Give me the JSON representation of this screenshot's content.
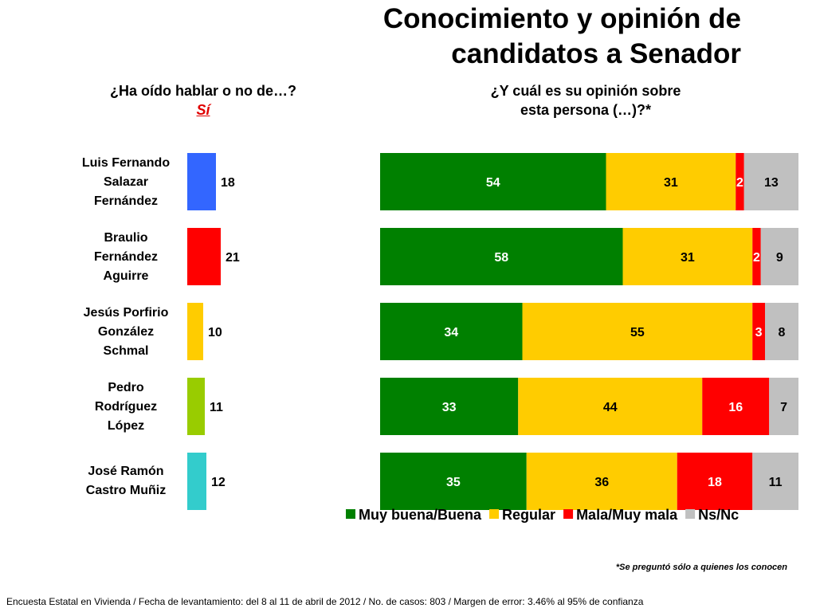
{
  "title": [
    "Conocimiento y opinión de",
    "candidatos a Senador"
  ],
  "question_left": [
    "¿Ha oído hablar o no de…?",
    "Sí"
  ],
  "question_right": [
    "¿Y cuál es su opinión sobre",
    "esta persona (…)?*"
  ],
  "candidates": [
    {
      "name_lines": [
        "Luis Fernando",
        "Salazar",
        "Fernández"
      ]
    },
    {
      "name_lines": [
        "Braulio",
        "Fernández",
        "Aguirre"
      ]
    },
    {
      "name_lines": [
        "Jesús Porfirio",
        "González",
        "Schmal"
      ]
    },
    {
      "name_lines": [
        "Pedro",
        "Rodríguez",
        "López"
      ]
    },
    {
      "name_lines": [
        "José Ramón",
        "Castro Muñiz"
      ]
    }
  ],
  "chart_data": [
    {
      "type": "bar",
      "orientation": "horizontal",
      "title": "¿Ha oído hablar o no de…? Sí",
      "categories": [
        "Luis Fernando Salazar Fernández",
        "Braulio Fernández Aguirre",
        "Jesús Porfirio González Schmal",
        "Pedro Rodríguez López",
        "José Ramón Castro Muñiz"
      ],
      "values": [
        18,
        21,
        10,
        11,
        12
      ],
      "colors": [
        "#3366ff",
        "#ff0000",
        "#ffcc00",
        "#99cc00",
        "#33cccc"
      ],
      "xlim": [
        0,
        100
      ]
    },
    {
      "type": "bar",
      "orientation": "horizontal",
      "stacked": true,
      "title": "¿Y cuál es su opinión sobre esta persona (…)?*",
      "categories": [
        "Luis Fernando Salazar Fernández",
        "Braulio Fernández Aguirre",
        "Jesús Porfirio González Schmal",
        "Pedro Rodríguez López",
        "José Ramón Castro Muñiz"
      ],
      "series": [
        {
          "name": "Muy buena/Buena",
          "color": "#008000",
          "label_color": "#ffffff",
          "values": [
            54,
            58,
            34,
            33,
            35
          ]
        },
        {
          "name": "Regular",
          "color": "#ffcc00",
          "label_color": "#000000",
          "values": [
            31,
            31,
            55,
            44,
            36
          ]
        },
        {
          "name": "Mala/Muy mala",
          "color": "#ff0000",
          "label_color": "#ffffff",
          "values": [
            2,
            2,
            3,
            16,
            18
          ]
        },
        {
          "name": "Ns/Nc",
          "color": "#c0c0c0",
          "label_color": "#000000",
          "values": [
            13,
            9,
            8,
            7,
            11
          ]
        }
      ],
      "legend": "bottom"
    }
  ],
  "footnote": "*Se preguntó sólo a quienes los conocen",
  "source": "Encuesta Estatal en Vivienda / Fecha de levantamiento: del  8 al 11 de abril de 2012 / No. de casos: 803 / Margen de error: 3.46% al 95% de confianza"
}
